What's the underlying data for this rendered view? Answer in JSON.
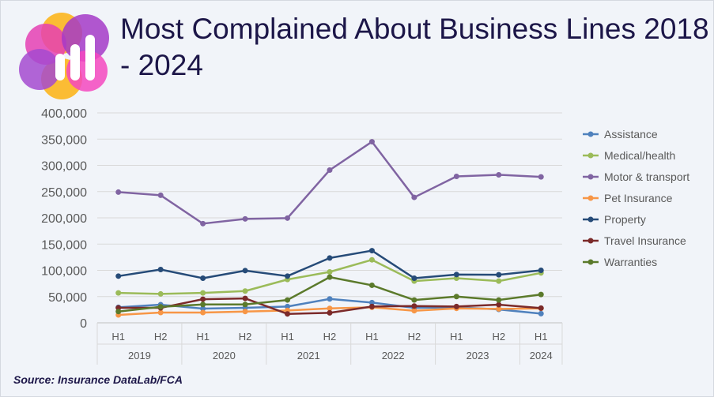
{
  "title": "Most Complained About Business Lines 2018 - 2024",
  "source": "Source: Insurance DataLab/FCA",
  "chart_data": {
    "type": "line",
    "title": "Most Complained About Business Lines 2018 - 2024",
    "categories": [
      "H1",
      "H2",
      "H1",
      "H2",
      "H1",
      "H2",
      "H1",
      "H2",
      "H1",
      "H2",
      "H1"
    ],
    "groups": [
      {
        "label": "2019",
        "span": 2
      },
      {
        "label": "2020",
        "span": 2
      },
      {
        "label": "2021",
        "span": 2
      },
      {
        "label": "2022",
        "span": 2
      },
      {
        "label": "2023",
        "span": 2
      },
      {
        "label": "2024",
        "span": 1
      }
    ],
    "ylim": [
      0,
      400000
    ],
    "yticks": [
      "0",
      "50,000",
      "100,000",
      "150,000",
      "200,000",
      "250,000",
      "300,000",
      "350,000",
      "400,000"
    ],
    "grid": true,
    "legend": "right",
    "series": [
      {
        "name": "Assistance",
        "color": "#4f81bd",
        "values": [
          29500,
          34500,
          27000,
          28500,
          31000,
          45500,
          38500,
          28500,
          29500,
          25500,
          17500
        ]
      },
      {
        "name": "Medical/health",
        "color": "#9bbb59",
        "values": [
          57000,
          55000,
          57000,
          60500,
          82500,
          97000,
          120000,
          79500,
          85000,
          79500,
          95000
        ]
      },
      {
        "name": "Motor & transport",
        "color": "#8064a2",
        "values": [
          249000,
          243000,
          189000,
          198000,
          199500,
          291000,
          345000,
          239000,
          279000,
          282000,
          278000
        ]
      },
      {
        "name": "Pet Insurance",
        "color": "#f79646",
        "values": [
          15000,
          19500,
          19500,
          21500,
          23500,
          27500,
          29500,
          23000,
          27500,
          26500,
          27500
        ]
      },
      {
        "name": "Property",
        "color": "#264b78",
        "values": [
          89000,
          101500,
          85000,
          99500,
          89000,
          123500,
          137500,
          85000,
          92000,
          91500,
          100000
        ]
      },
      {
        "name": "Travel Insurance",
        "color": "#7b2a2a",
        "values": [
          28500,
          28500,
          45000,
          46500,
          17000,
          19000,
          31000,
          32000,
          31000,
          34500,
          28000
        ]
      },
      {
        "name": "Warranties",
        "color": "#5b7a2b",
        "values": [
          21500,
          30500,
          35000,
          35000,
          43500,
          87000,
          71500,
          43500,
          50000,
          43500,
          54000
        ]
      }
    ]
  }
}
